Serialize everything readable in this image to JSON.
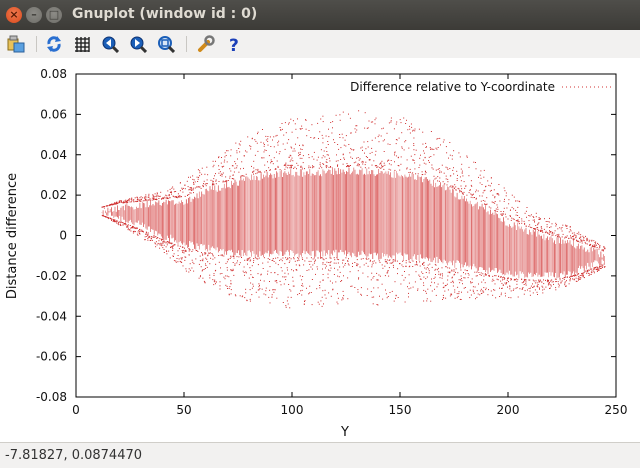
{
  "window": {
    "title": "Gnuplot (window id : 0)"
  },
  "toolbar": {
    "icons": [
      "export-icon",
      "replot-icon",
      "grid-icon",
      "zoom-previous-icon",
      "zoom-next-icon",
      "autoscale-icon",
      "settings-icon",
      "help-icon"
    ]
  },
  "status": {
    "coordinates": "-7.81827,  0.0874470"
  },
  "chart_data": {
    "type": "scatter",
    "title": "",
    "legend": "Difference relative to Y-coordinate",
    "legend_position": "top-right",
    "xlabel": "Y",
    "ylabel": "Distance difference",
    "xlim": [
      0,
      250
    ],
    "ylim": [
      -0.08,
      0.08
    ],
    "xticks": [
      "0",
      "50",
      "100",
      "150",
      "200",
      "250"
    ],
    "yticks": [
      "0.08",
      "0.06",
      "0.04",
      "0.02",
      "0",
      "-0.02",
      "-0.04",
      "-0.06",
      "-0.08"
    ],
    "series_color": "#d03030",
    "envelope": {
      "x": [
        12,
        20,
        30,
        40,
        50,
        60,
        70,
        80,
        90,
        100,
        110,
        120,
        130,
        140,
        150,
        160,
        170,
        180,
        190,
        200,
        210,
        220,
        230,
        240,
        245
      ],
      "upper": [
        0.014,
        0.016,
        0.017,
        0.018,
        0.019,
        0.024,
        0.027,
        0.03,
        0.032,
        0.033,
        0.033,
        0.034,
        0.034,
        0.033,
        0.032,
        0.03,
        0.026,
        0.02,
        0.015,
        0.008,
        0.004,
        0.0,
        -0.002,
        -0.006,
        -0.008
      ],
      "lower": [
        0.01,
        0.007,
        0.003,
        -0.002,
        -0.006,
        -0.008,
        -0.01,
        -0.011,
        -0.011,
        -0.011,
        -0.011,
        -0.011,
        -0.011,
        -0.012,
        -0.012,
        -0.013,
        -0.015,
        -0.017,
        -0.019,
        -0.021,
        -0.022,
        -0.022,
        -0.02,
        -0.016,
        -0.014
      ]
    },
    "outlier_spread": {
      "x": [
        12,
        40,
        60,
        80,
        100,
        130,
        160,
        190,
        210,
        230,
        245
      ],
      "up": [
        0.0,
        0.004,
        0.012,
        0.02,
        0.025,
        0.028,
        0.026,
        0.018,
        0.01,
        0.006,
        0.002
      ],
      "down": [
        0.0,
        0.006,
        0.016,
        0.022,
        0.025,
        0.024,
        0.02,
        0.012,
        0.008,
        0.004,
        0.002
      ]
    }
  }
}
